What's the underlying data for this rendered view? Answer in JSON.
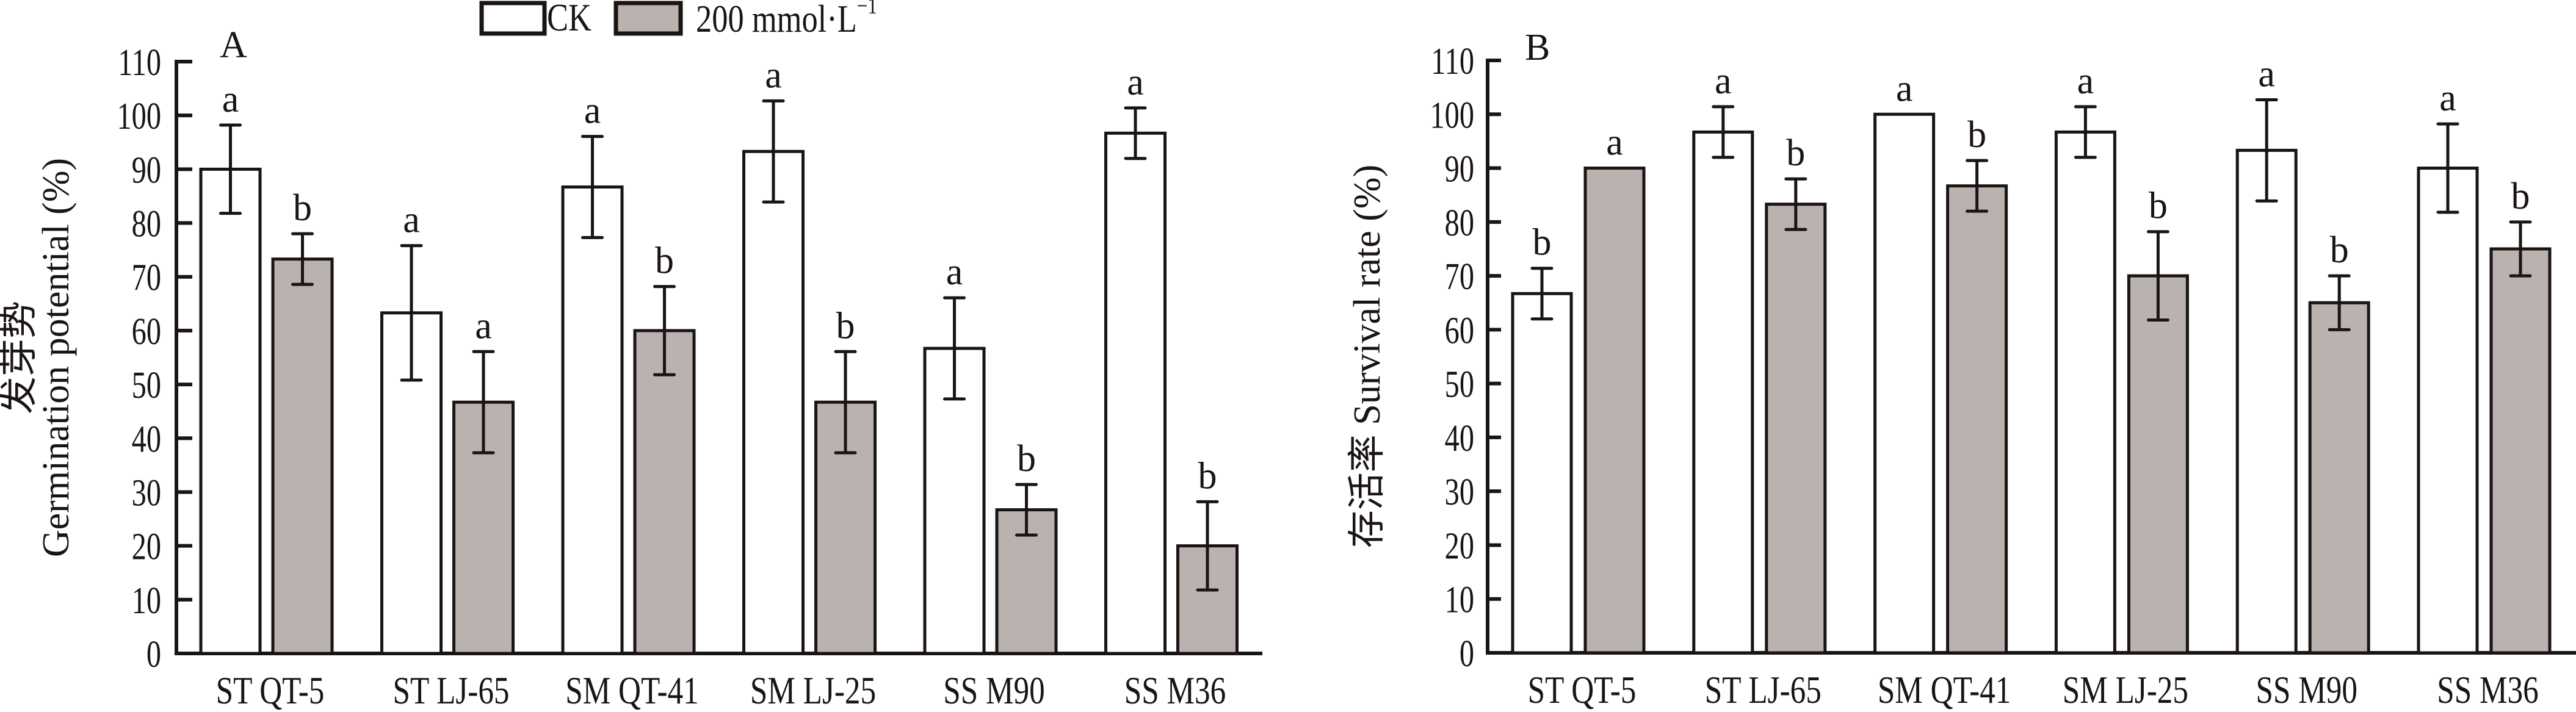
{
  "legend": {
    "items": [
      {
        "label": "CK",
        "color": "#ffffff"
      },
      {
        "label": "200 mmol·L",
        "superscript": "−1",
        "color": "#bab2ae"
      }
    ]
  },
  "colors": {
    "ck": "#ffffff",
    "salt": "#bab2ae",
    "stroke": "#1a1414"
  },
  "chart_data": [
    {
      "type": "bar",
      "panel": "A",
      "title": "",
      "ylabel_lines": [
        "发芽势",
        "Germination potential (%)"
      ],
      "xlabel": "",
      "ylim": [
        0,
        110
      ],
      "yticks": [
        0,
        10,
        20,
        30,
        40,
        50,
        60,
        70,
        80,
        90,
        100,
        110
      ],
      "grid": false,
      "legend_position": "top-center",
      "categories": [
        "ST QT-5",
        "ST LJ-65",
        "SM QT-41",
        "SM LJ-25",
        "SS M90",
        "SS M36"
      ],
      "series": [
        {
          "name": "CK",
          "values": [
            90.0,
            63.3,
            86.7,
            93.3,
            56.7,
            96.7
          ],
          "errors": [
            8.2,
            12.5,
            9.4,
            9.4,
            9.4,
            4.7
          ],
          "significance": [
            "a",
            "a",
            "a",
            "a",
            "a",
            "a"
          ]
        },
        {
          "name": "200 mmol·L⁻¹",
          "values": [
            73.3,
            46.7,
            60.0,
            46.7,
            26.7,
            20.0
          ],
          "errors": [
            4.7,
            9.4,
            8.2,
            9.4,
            4.7,
            8.2
          ],
          "significance": [
            "b",
            "a",
            "b",
            "b",
            "b",
            "b"
          ]
        }
      ]
    },
    {
      "type": "bar",
      "panel": "B",
      "title": "",
      "ylabel_lines": [
        "存活率 Survival rate (%)"
      ],
      "xlabel": "",
      "ylim": [
        0,
        110
      ],
      "yticks": [
        0,
        10,
        20,
        30,
        40,
        50,
        60,
        70,
        80,
        90,
        100,
        110
      ],
      "grid": false,
      "categories": [
        "ST QT-5",
        "ST LJ-65",
        "SM QT-41",
        "SM LJ-25",
        "SS M90",
        "SS M36"
      ],
      "series": [
        {
          "name": "CK",
          "values": [
            66.7,
            96.7,
            100.0,
            96.7,
            93.3,
            90.0
          ],
          "errors": [
            4.7,
            4.7,
            0,
            4.7,
            9.4,
            8.2
          ],
          "significance": [
            "b",
            "a",
            "a",
            "a",
            "a",
            "a"
          ]
        },
        {
          "name": "200 mmol·L⁻¹",
          "values": [
            90.0,
            83.3,
            86.7,
            70.0,
            65.0,
            75.0
          ],
          "errors": [
            0,
            4.7,
            4.7,
            8.2,
            5.0,
            5.0
          ],
          "significance": [
            "a",
            "b",
            "b",
            "b",
            "b",
            "b"
          ]
        }
      ]
    }
  ]
}
